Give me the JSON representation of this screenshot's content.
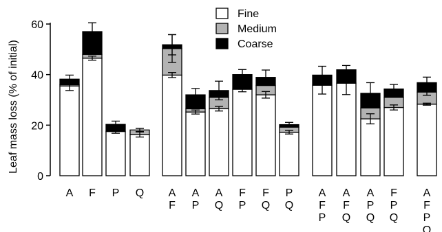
{
  "chart_data": {
    "type": "bar",
    "stacked": true,
    "title": "",
    "xlabel": "",
    "ylabel": "Leaf mass loss (% of initial)",
    "ylim": [
      0,
      60
    ],
    "yticks": [
      0,
      20,
      40,
      60
    ],
    "grid": false,
    "legend_position": "top-center",
    "series": [
      {
        "name": "Fine",
        "color": "#ffffff"
      },
      {
        "name": "Medium",
        "color": "#b3b3b3"
      },
      {
        "name": "Coarse",
        "color": "#000000"
      }
    ],
    "bars": [
      {
        "label": [
          "A"
        ],
        "fine": 35.5,
        "medium": 0.5,
        "coarse": 2.2,
        "fine_err": 1.8,
        "total_err": 1.6
      },
      {
        "label": [
          "F"
        ],
        "fine": 46.5,
        "medium": 1.5,
        "coarse": 9.0,
        "fine_err": 0.8,
        "total_err": 3.5
      },
      {
        "label": [
          "P"
        ],
        "fine": 17.5,
        "medium": 0.0,
        "coarse": 2.8,
        "fine_err": 0.7,
        "total_err": 1.3
      },
      {
        "label": [
          "Q"
        ],
        "fine": 16.3,
        "medium": 1.8,
        "coarse": 0.0,
        "fine_err": 1.0,
        "total_err": 0.6
      },
      {
        "label": [
          "A",
          "F"
        ],
        "fine": 39.8,
        "medium": 10.5,
        "coarse": 1.5,
        "fine_err": 1.0,
        "medium_err": 5.5,
        "total_err": 4.0
      },
      {
        "label": [
          "A",
          "P"
        ],
        "fine": 25.2,
        "medium": 1.3,
        "coarse": 5.5,
        "fine_err": 0.8,
        "total_err": 2.5
      },
      {
        "label": [
          "A",
          "Q"
        ],
        "fine": 26.5,
        "medium": 4.5,
        "coarse": 2.7,
        "fine_err": 0.9,
        "total_err": 3.7
      },
      {
        "label": [
          "F",
          "P"
        ],
        "fine": 34.2,
        "medium": 0.0,
        "coarse": 5.8,
        "fine_err": 1.0,
        "total_err": 2.0
      },
      {
        "label": [
          "F",
          "Q"
        ],
        "fine": 32.0,
        "medium": 3.7,
        "coarse": 3.2,
        "fine_err": 1.3,
        "total_err": 2.9
      },
      {
        "label": [
          "P",
          "Q"
        ],
        "fine": 17.2,
        "medium": 2.0,
        "coarse": 1.0,
        "fine_err": 0.7,
        "total_err": 0.9
      },
      {
        "label": [
          "A",
          "F",
          "P"
        ],
        "fine": 35.8,
        "medium": 0.0,
        "coarse": 4.0,
        "fine_err": 3.5,
        "total_err": 3.5
      },
      {
        "label": [
          "A",
          "F",
          "Q"
        ],
        "fine": 36.6,
        "medium": 0.0,
        "coarse": 5.3,
        "fine_err": 4.5,
        "total_err": 1.7
      },
      {
        "label": [
          "A",
          "P",
          "Q"
        ],
        "fine": 22.5,
        "medium": 4.3,
        "coarse": 5.8,
        "fine_err": 2.0,
        "total_err": 4.2
      },
      {
        "label": [
          "F",
          "P",
          "Q"
        ],
        "fine": 27.0,
        "medium": 4.0,
        "coarse": 3.3,
        "fine_err": 1.0,
        "total_err": 1.8
      },
      {
        "label": [
          "A",
          "F",
          "P",
          "Q"
        ],
        "fine": 28.3,
        "medium": 4.8,
        "coarse": 3.7,
        "fine_err": 0.4,
        "medium_err": 1.3,
        "total_err": 2.2
      }
    ]
  }
}
